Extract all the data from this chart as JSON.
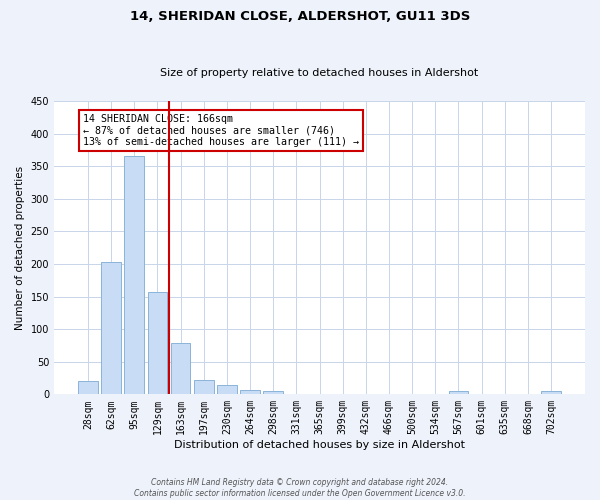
{
  "title": "14, SHERIDAN CLOSE, ALDERSHOT, GU11 3DS",
  "subtitle": "Size of property relative to detached houses in Aldershot",
  "xlabel": "Distribution of detached houses by size in Aldershot",
  "ylabel": "Number of detached properties",
  "bar_labels": [
    "28sqm",
    "62sqm",
    "95sqm",
    "129sqm",
    "163sqm",
    "197sqm",
    "230sqm",
    "264sqm",
    "298sqm",
    "331sqm",
    "365sqm",
    "399sqm",
    "432sqm",
    "466sqm",
    "500sqm",
    "534sqm",
    "567sqm",
    "601sqm",
    "635sqm",
    "668sqm",
    "702sqm"
  ],
  "bar_values": [
    20,
    203,
    365,
    157,
    78,
    22,
    15,
    7,
    5,
    0,
    0,
    0,
    0,
    0,
    0,
    0,
    5,
    0,
    0,
    0,
    5
  ],
  "bar_color": "#c8dcf5",
  "bar_edgecolor": "#8ab4d8",
  "vline_x_index": 4.5,
  "vline_color": "#cc0000",
  "ylim": [
    0,
    450
  ],
  "yticks": [
    0,
    50,
    100,
    150,
    200,
    250,
    300,
    350,
    400,
    450
  ],
  "annotation_title": "14 SHERIDAN CLOSE: 166sqm",
  "annotation_line1": "← 87% of detached houses are smaller (746)",
  "annotation_line2": "13% of semi-detached houses are larger (111) →",
  "annotation_box_color": "#cc0000",
  "footer_line1": "Contains HM Land Registry data © Crown copyright and database right 2024.",
  "footer_line2": "Contains public sector information licensed under the Open Government Licence v3.0.",
  "bg_color": "#eef2fb",
  "plot_bg_color": "#ffffff",
  "grid_color": "#c8d4e8",
  "title_fontsize": 9.5,
  "subtitle_fontsize": 8.0,
  "xlabel_fontsize": 8.0,
  "ylabel_fontsize": 7.5,
  "tick_fontsize": 7.0,
  "ann_fontsize": 7.2,
  "footer_fontsize": 5.5
}
